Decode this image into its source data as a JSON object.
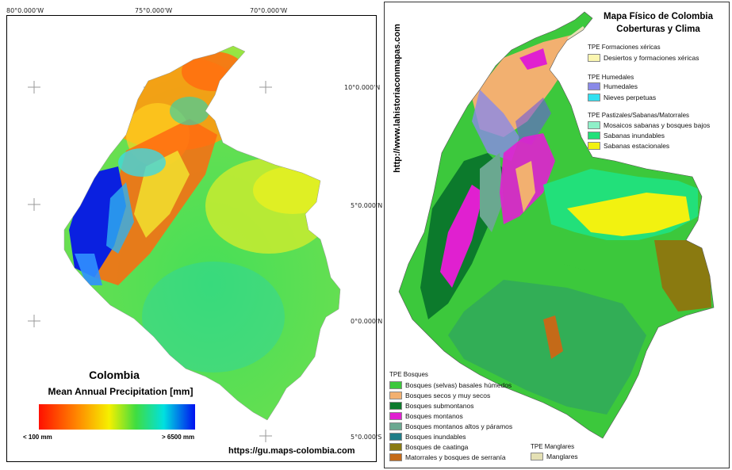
{
  "left_map": {
    "title": "Colombia",
    "subtitle": "Mean Annual Precipitation [mm]",
    "scale_min": "< 100 mm",
    "scale_max": "> 6500 mm",
    "source": "https://gu.maps-colombia.com",
    "lon_labels": [
      "80°0.000'W",
      "75°0.000'W",
      "70°0.000'W"
    ],
    "lat_labels": [
      "10°0.000'N",
      "5°0.000'N",
      "0°0.000'N",
      "5°0.000'S"
    ],
    "gradient_colors": [
      "#ff0000",
      "#ff8800",
      "#ffff00",
      "#44dd44",
      "#00dddd",
      "#0088ff",
      "#0000ee"
    ]
  },
  "right_map": {
    "title_line1": "Mapa Físico de Colombia",
    "title_line2": "Coberturas y Clima",
    "vertical_url": "http://www.lahistoriaconmapas.com",
    "groups": [
      {
        "heading": "TPE Formaciones xéricas",
        "items": [
          {
            "label": "Desiertos y formaciones xéricas",
            "color": "#fbf6b0"
          }
        ]
      },
      {
        "heading": "TPE Humedales",
        "items": [
          {
            "label": "Humedales",
            "color": "#8a8ae8"
          },
          {
            "label": "Nieves perpetuas",
            "color": "#30e0f0"
          }
        ]
      },
      {
        "heading": "TPE Pastizales/Sabanas/Matorrales",
        "items": [
          {
            "label": "Mosaicos sabanas y bosques bajos",
            "color": "#8ff0c8"
          },
          {
            "label": "Sabanas inundables",
            "color": "#22e07a"
          },
          {
            "label": "Sabanas estacionales",
            "color": "#f2f210"
          }
        ]
      },
      {
        "heading": "TPE Bosques",
        "items": [
          {
            "label": "Bosques (selvas) basales húmedos",
            "color": "#3cc83c"
          },
          {
            "label": "Bosques secos y muy secos",
            "color": "#f2b070"
          },
          {
            "label": "Bosques submontanos",
            "color": "#0c7a2c"
          },
          {
            "label": "Bosques montanos",
            "color": "#e020d0"
          },
          {
            "label": "Bosques montanos altos y páramos",
            "color": "#6aa890"
          },
          {
            "label": "Bosques inundables",
            "color": "#1f7d88"
          },
          {
            "label": "Bosques de caatinga",
            "color": "#8a7a10"
          },
          {
            "label": "Matorrales y bosques de serranía",
            "color": "#c46a18"
          }
        ]
      },
      {
        "heading": "TPE Manglares",
        "items": [
          {
            "label": "Manglares",
            "color": "#e4e0b4"
          }
        ]
      }
    ]
  }
}
